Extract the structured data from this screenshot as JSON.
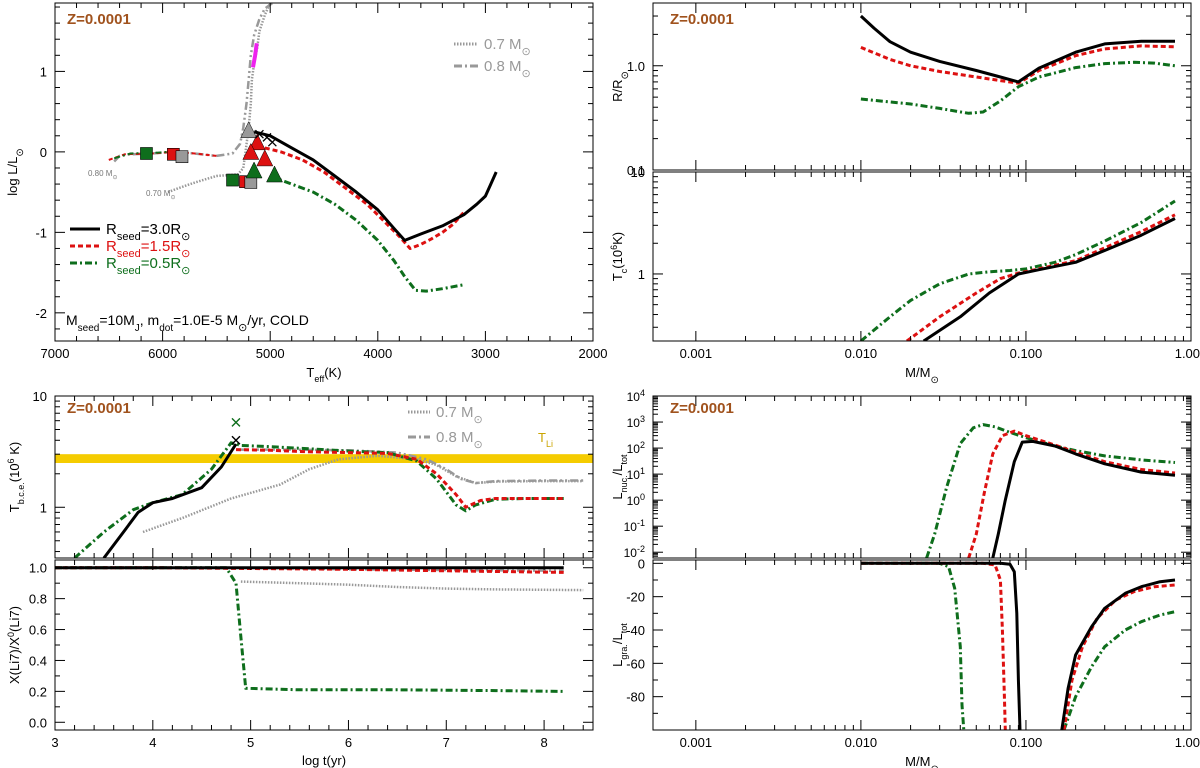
{
  "colors": {
    "black": "#000000",
    "red": "#dd1111",
    "green": "#0e6e1c",
    "gray": "#999999",
    "magenta": "#ee22ee",
    "gold": "#f5cc00",
    "brown": "#a0521d"
  },
  "chart_data": [
    {
      "id": "hr",
      "type": "line",
      "title": "Z=0.0001",
      "xlabel": "T_eff(K)",
      "ylabel": "log L/L_sun",
      "xlim": [
        7000,
        2000
      ],
      "ylim": [
        -2.35,
        1.85
      ],
      "xticks": [
        "7000",
        "6000",
        "5000",
        "4000",
        "3000",
        "2000"
      ],
      "yticks": [
        "-2",
        "-1",
        "0",
        "1"
      ],
      "legend": [
        "R_seed=3.0R_sun",
        "R_seed=1.5R_sun",
        "R_seed=0.5R_sun"
      ],
      "legend_gray": [
        "0.7 M_sun",
        "0.8 M_sun"
      ],
      "annotation": "M_seed=10M_J, m_dot=1.0E-5 M_sun/yr, COLD",
      "track_labels": [
        "0.80 M_sun",
        "0.70 M_sun"
      ],
      "series": [
        {
          "name": "R_seed=3.0R_sun",
          "x": [
            5150,
            5000,
            4800,
            4600,
            4400,
            4200,
            4000,
            3850,
            3750,
            3600,
            3400,
            3200,
            3080,
            3000,
            2950,
            2900
          ],
          "y": [
            0.25,
            0.2,
            0.05,
            -0.1,
            -0.3,
            -0.5,
            -0.72,
            -0.95,
            -1.1,
            -1.02,
            -0.92,
            -0.78,
            -0.65,
            -0.55,
            -0.4,
            -0.25
          ]
        },
        {
          "name": "R_seed=1.5R_sun",
          "x": [
            5050,
            4900,
            4700,
            4500,
            4300,
            4100,
            3950,
            3800,
            3700,
            3600,
            3500,
            3400,
            3300,
            3200
          ],
          "y": [
            0.05,
            0.0,
            -0.1,
            -0.25,
            -0.45,
            -0.65,
            -0.85,
            -1.05,
            -1.2,
            -1.15,
            -1.08,
            -1.0,
            -0.9,
            -0.75
          ]
        },
        {
          "name": "R_seed=0.5R_sun",
          "x": [
            5000,
            4800,
            4600,
            4400,
            4200,
            4000,
            3850,
            3750,
            3650,
            3550,
            3400,
            3200
          ],
          "y": [
            -0.3,
            -0.4,
            -0.5,
            -0.65,
            -0.85,
            -1.1,
            -1.35,
            -1.55,
            -1.72,
            -1.73,
            -1.7,
            -1.65
          ]
        },
        {
          "name": "0.7 M_sun",
          "x": [
            5950,
            5850,
            5700,
            5500,
            5300,
            5250,
            5230,
            5200,
            5180,
            5170,
            5150,
            5120,
            5100,
            5050,
            5000
          ],
          "y": [
            -0.5,
            -0.45,
            -0.38,
            -0.3,
            -0.28,
            -0.2,
            0.0,
            0.3,
            0.6,
            0.9,
            1.1,
            1.3,
            1.5,
            1.7,
            1.85
          ]
        },
        {
          "name": "0.8 M_sun",
          "x": [
            6450,
            6400,
            6300,
            6100,
            5900,
            5700,
            5500,
            5350,
            5280,
            5250,
            5220,
            5200,
            5180,
            5150,
            5100,
            5050,
            4980
          ],
          "y": [
            -0.12,
            -0.05,
            -0.03,
            -0.02,
            0.0,
            -0.02,
            -0.05,
            -0.02,
            0.1,
            0.3,
            0.6,
            0.9,
            1.2,
            1.45,
            1.65,
            1.78,
            1.85
          ]
        }
      ]
    },
    {
      "id": "radius",
      "type": "line",
      "title": "Z=0.0001",
      "xlabel": "",
      "ylabel": "R/R_sun",
      "xscale": "log",
      "yscale": "log",
      "xlim": [
        0.00055,
        1.0
      ],
      "ylim": [
        0.1,
        4.0
      ],
      "yticks": [
        "0.1",
        "1.0"
      ],
      "series": [
        {
          "name": "R_seed=3.0R_sun",
          "x": [
            0.01,
            0.012,
            0.015,
            0.02,
            0.03,
            0.05,
            0.07,
            0.09,
            0.12,
            0.2,
            0.3,
            0.5,
            0.8
          ],
          "y": [
            3.0,
            2.3,
            1.7,
            1.35,
            1.1,
            0.9,
            0.78,
            0.7,
            0.95,
            1.35,
            1.62,
            1.72,
            1.72
          ]
        },
        {
          "name": "R_seed=1.5R_sun",
          "x": [
            0.01,
            0.015,
            0.02,
            0.03,
            0.05,
            0.07,
            0.09,
            0.12,
            0.2,
            0.3,
            0.5,
            0.8
          ],
          "y": [
            1.5,
            1.15,
            1.0,
            0.88,
            0.78,
            0.72,
            0.68,
            0.9,
            1.25,
            1.45,
            1.55,
            1.52
          ]
        },
        {
          "name": "R_seed=0.5R_sun",
          "x": [
            0.01,
            0.02,
            0.03,
            0.045,
            0.055,
            0.07,
            0.09,
            0.12,
            0.2,
            0.3,
            0.45,
            0.6,
            0.8
          ],
          "y": [
            0.48,
            0.43,
            0.39,
            0.35,
            0.36,
            0.46,
            0.63,
            0.78,
            0.96,
            1.05,
            1.08,
            1.06,
            1.0
          ]
        }
      ]
    },
    {
      "id": "tc",
      "type": "line",
      "xlabel": "M/M_sun",
      "ylabel": "T_c(10^6K)",
      "xscale": "log",
      "yscale": "log",
      "xlim": [
        0.00055,
        1.0
      ],
      "ylim": [
        0.22,
        10.0
      ],
      "xticks": [
        "0.001",
        "0.010",
        "0.100",
        "1.000"
      ],
      "yticks": [
        "1",
        "10"
      ],
      "series": [
        {
          "name": "R_seed=3.0R_sun",
          "x": [
            0.024,
            0.04,
            0.06,
            0.09,
            0.12,
            0.2,
            0.3,
            0.5,
            0.8
          ],
          "y": [
            0.22,
            0.38,
            0.65,
            1.0,
            1.1,
            1.3,
            1.7,
            2.4,
            3.5
          ]
        },
        {
          "name": "R_seed=1.5R_sun",
          "x": [
            0.019,
            0.03,
            0.05,
            0.07,
            0.09,
            0.12,
            0.2,
            0.3,
            0.5,
            0.8
          ],
          "y": [
            0.22,
            0.38,
            0.65,
            0.9,
            1.02,
            1.12,
            1.35,
            1.8,
            2.6,
            3.8
          ]
        },
        {
          "name": "R_seed=0.5R_sun",
          "x": [
            0.01,
            0.015,
            0.02,
            0.03,
            0.045,
            0.06,
            0.08,
            0.1,
            0.15,
            0.2,
            0.3,
            0.5,
            0.8
          ],
          "y": [
            0.22,
            0.38,
            0.55,
            0.8,
            1.0,
            1.05,
            1.08,
            1.12,
            1.3,
            1.55,
            2.1,
            3.2,
            5.2
          ]
        }
      ]
    },
    {
      "id": "tbce",
      "type": "line",
      "title": "Z=0.0001",
      "xlabel": "",
      "ylabel": "T_b.c.e.(10^6 K)",
      "yscale": "log",
      "xlim": [
        3.0,
        8.5
      ],
      "ylim": [
        0.35,
        10.0
      ],
      "yticks": [
        "1",
        "10"
      ],
      "band": {
        "label": "T_Li",
        "ymin": 2.5,
        "ymax": 3.0
      },
      "legend_gray": [
        "0.7 M_sun",
        "0.8 M_sun"
      ],
      "series": [
        {
          "name": "R_seed=3.0R_sun",
          "x": [
            3.5,
            3.7,
            3.85,
            4.0,
            4.2,
            4.5,
            4.7,
            4.85
          ],
          "y": [
            0.35,
            0.6,
            0.9,
            1.1,
            1.2,
            1.5,
            2.3,
            3.7
          ]
        },
        {
          "name": "R_seed=1.5R_sun",
          "x": [
            4.85,
            5.2,
            5.6,
            6.0,
            6.4,
            6.7,
            6.9,
            7.1,
            7.2,
            7.25,
            7.35,
            7.5,
            7.8,
            8.2
          ],
          "y": [
            3.3,
            3.25,
            3.15,
            3.1,
            3.05,
            2.7,
            2.0,
            1.3,
            1.0,
            1.05,
            1.15,
            1.2,
            1.2,
            1.2
          ]
        },
        {
          "name": "R_seed=0.5R_sun",
          "x": [
            3.2,
            3.5,
            3.8,
            4.0,
            4.3,
            4.6,
            4.8,
            4.9,
            5.2,
            5.6,
            6.0,
            6.4,
            6.7,
            6.9,
            7.1,
            7.2,
            7.3,
            7.5,
            7.8,
            8.2
          ],
          "y": [
            0.35,
            0.6,
            0.95,
            1.1,
            1.3,
            2.2,
            3.8,
            3.6,
            3.5,
            3.35,
            3.2,
            3.1,
            2.6,
            1.8,
            1.05,
            0.93,
            1.05,
            1.18,
            1.2,
            1.2
          ]
        },
        {
          "name": "0.7 M_sun",
          "x": [
            3.9,
            4.3,
            4.8,
            5.3,
            5.6,
            5.9,
            6.3,
            6.7,
            6.9,
            7.1,
            7.3,
            7.5,
            8.0,
            8.4
          ],
          "y": [
            0.6,
            0.8,
            1.2,
            1.6,
            2.2,
            2.7,
            2.9,
            2.7,
            2.4,
            1.9,
            1.65,
            1.7,
            1.72,
            1.72
          ]
        },
        {
          "name": "0.8 M_sun",
          "x": [
            4.9,
            5.4,
            6.0,
            6.5,
            6.8,
            7.0,
            7.15,
            7.3,
            7.5,
            8.0,
            8.4
          ],
          "y": [
            3.3,
            3.3,
            3.25,
            3.1,
            2.7,
            2.2,
            1.8,
            1.65,
            1.72,
            1.74,
            1.74
          ]
        }
      ]
    },
    {
      "id": "li7",
      "type": "line",
      "xlabel": "log t(yr)",
      "ylabel": "X(Li7)/X0(Li7)",
      "xlim": [
        3.0,
        8.5
      ],
      "ylim": [
        -0.05,
        1.05
      ],
      "xticks": [
        "3",
        "4",
        "5",
        "6",
        "7",
        "8"
      ],
      "yticks": [
        "0.0",
        "0.2",
        "0.4",
        "0.6",
        "0.8",
        "1.0"
      ],
      "series": [
        {
          "name": "R_seed=3.0R_sun",
          "x": [
            3.0,
            4.0,
            5.0,
            6.0,
            7.0,
            8.2
          ],
          "y": [
            1.0,
            1.0,
            1.0,
            1.0,
            1.0,
            1.0
          ]
        },
        {
          "name": "R_seed=1.5R_sun",
          "x": [
            3.0,
            4.0,
            5.0,
            6.0,
            7.0,
            8.2
          ],
          "y": [
            1.0,
            1.0,
            0.995,
            0.99,
            0.98,
            0.97
          ]
        },
        {
          "name": "R_seed=0.5R_sun",
          "x": [
            3.0,
            4.0,
            4.75,
            4.85,
            4.9,
            4.95,
            5.5,
            6.5,
            7.5,
            8.2
          ],
          "y": [
            1.0,
            1.0,
            1.0,
            0.9,
            0.55,
            0.22,
            0.21,
            0.21,
            0.205,
            0.2
          ]
        },
        {
          "name": "0.8 M_sun",
          "x": [
            3.0,
            4.9,
            5.5,
            6.0,
            7.0,
            8.2
          ],
          "y": [
            1.0,
            1.0,
            0.995,
            0.99,
            0.985,
            0.98
          ]
        },
        {
          "name": "0.7 M_sun",
          "x": [
            4.9,
            5.5,
            6.0,
            6.5,
            7.0,
            7.5,
            8.4
          ],
          "y": [
            0.91,
            0.9,
            0.89,
            0.875,
            0.865,
            0.86,
            0.855
          ]
        }
      ]
    },
    {
      "id": "lnuc",
      "type": "line",
      "title": "Z=0.0001",
      "xlabel": "",
      "ylabel": "L_nuc./L_tot",
      "xscale": "log",
      "yscale": "log",
      "xlim": [
        0.00055,
        1.0
      ],
      "ylim": [
        0.006,
        10000.0
      ],
      "yticks": [
        "10^-2",
        "10^-1",
        "10^0",
        "10^1",
        "10^2",
        "10^3",
        "10^4"
      ],
      "series": [
        {
          "name": "R_seed=3.0R_sun",
          "x": [
            0.063,
            0.068,
            0.075,
            0.085,
            0.095,
            0.11,
            0.15,
            0.2,
            0.3,
            0.5,
            0.8
          ],
          "y": [
            0.006,
            0.05,
            1.0,
            30.0,
            170.0,
            180.0,
            120.0,
            60.0,
            25.0,
            12.0,
            9.0
          ]
        },
        {
          "name": "R_seed=1.5R_sun",
          "x": [
            0.045,
            0.05,
            0.056,
            0.063,
            0.072,
            0.085,
            0.1,
            0.15,
            0.2,
            0.3,
            0.5,
            0.8
          ],
          "y": [
            0.006,
            0.05,
            2.0,
            60.0,
            300.0,
            450.0,
            300.0,
            130.0,
            70.0,
            30.0,
            15.0,
            11.0
          ]
        },
        {
          "name": "R_seed=0.5R_sun",
          "x": [
            0.025,
            0.028,
            0.033,
            0.04,
            0.048,
            0.055,
            0.065,
            0.08,
            0.1,
            0.15,
            0.2,
            0.3,
            0.5,
            0.8
          ],
          "y": [
            0.006,
            0.05,
            3.0,
            150.0,
            600.0,
            800.0,
            650.0,
            400.0,
            250.0,
            120.0,
            80.0,
            50.0,
            35.0,
            28.0
          ]
        }
      ]
    },
    {
      "id": "lgra",
      "type": "line",
      "xlabel": "M/M_sun",
      "ylabel": "L_gra./L_tot",
      "xscale": "log",
      "xlim": [
        0.00055,
        1.0
      ],
      "ylim": [
        -100.0,
        2.0
      ],
      "xticks": [
        "0.001",
        "0.010",
        "0.100",
        "1.000"
      ],
      "yticks": [
        "0",
        "-20",
        "-40",
        "-60",
        "-80"
      ],
      "series": [
        {
          "name": "R_seed=3.0R_sun",
          "x": [
            0.01,
            0.07,
            0.08,
            0.085,
            0.088,
            0.09,
            0.092
          ],
          "y": [
            0.0,
            0.0,
            -0.5,
            -5.0,
            -30.0,
            -70.0,
            -100.0
          ]
        },
        {
          "name": "R_seed=3.0R_sun (after)",
          "x": [
            0.165,
            0.18,
            0.2,
            0.25,
            0.3,
            0.4,
            0.5,
            0.65,
            0.8
          ],
          "y": [
            -100.0,
            -75.0,
            -55.0,
            -38.0,
            -27.0,
            -18.0,
            -14.0,
            -11.0,
            -10.0
          ]
        },
        {
          "name": "R_seed=1.5R_sun",
          "x": [
            0.01,
            0.055,
            0.065,
            0.07,
            0.072,
            0.074,
            0.075
          ],
          "y": [
            0.0,
            0.0,
            -1.0,
            -10.0,
            -40.0,
            -80.0,
            -100.0
          ]
        },
        {
          "name": "R_seed=1.5R_sun (after)",
          "x": [
            0.17,
            0.19,
            0.22,
            0.27,
            0.35,
            0.45,
            0.6,
            0.8
          ],
          "y": [
            -100.0,
            -70.0,
            -50.0,
            -33.0,
            -22.0,
            -17.0,
            -14.0,
            -13.0
          ]
        },
        {
          "name": "R_seed=0.5R_sun",
          "x": [
            0.01,
            0.03,
            0.034,
            0.037,
            0.04,
            0.041,
            0.042
          ],
          "y": [
            0.0,
            0.0,
            -2.0,
            -15.0,
            -50.0,
            -85.0,
            -100.0
          ]
        },
        {
          "name": "R_seed=0.5R_sun (after)",
          "x": [
            0.17,
            0.2,
            0.25,
            0.3,
            0.4,
            0.5,
            0.65,
            0.8
          ],
          "y": [
            -100.0,
            -80.0,
            -62.0,
            -50.0,
            -40.0,
            -35.0,
            -31.0,
            -29.0
          ]
        }
      ]
    }
  ]
}
